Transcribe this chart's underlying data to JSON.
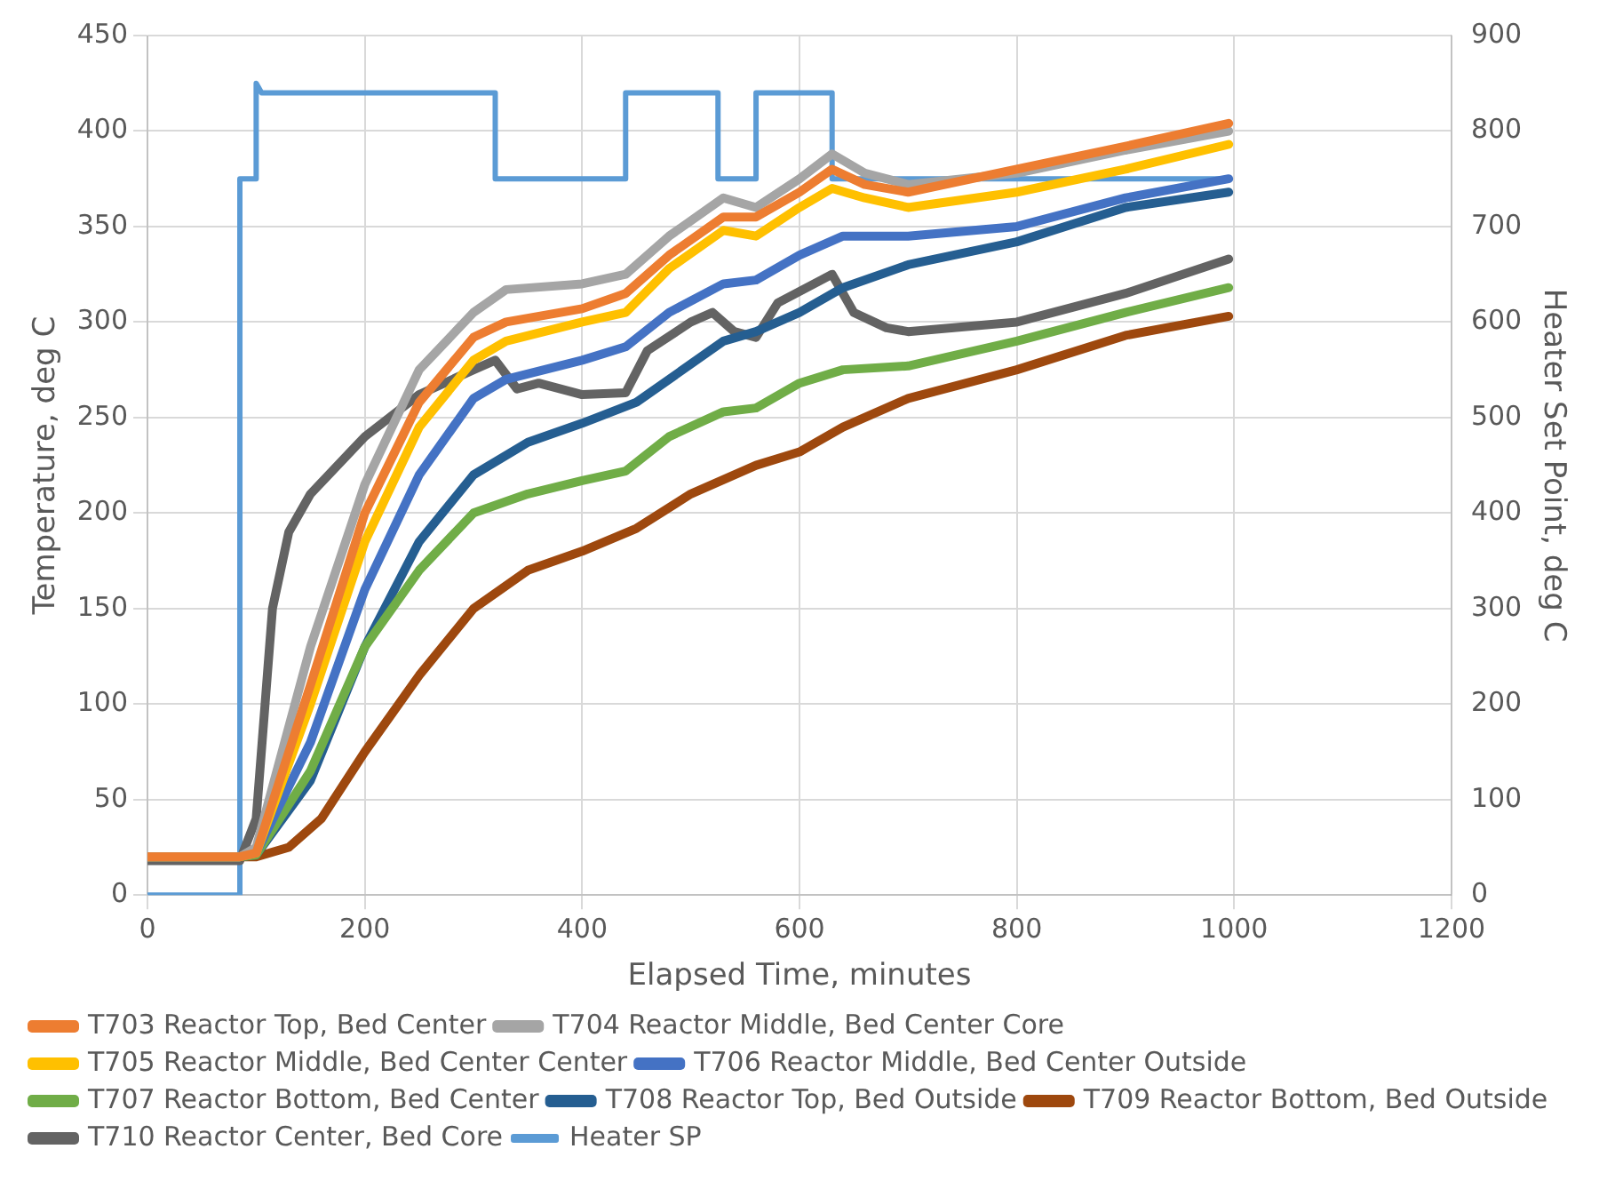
{
  "chart_data": {
    "type": "line",
    "xlabel": "Elapsed Time, minutes",
    "ylabel": "Temperature, deg C",
    "y2label": "Heater Set Point, deg C",
    "xlim": [
      0,
      1200
    ],
    "xticks": [
      0,
      200,
      400,
      600,
      800,
      1000,
      1200
    ],
    "ylim": [
      0,
      450
    ],
    "yticks": [
      0,
      50,
      100,
      150,
      200,
      250,
      300,
      350,
      400,
      450
    ],
    "y2lim": [
      0,
      900
    ],
    "y2ticks": [
      0,
      100,
      200,
      300,
      400,
      500,
      600,
      700,
      800,
      900
    ],
    "grid": true,
    "legend": "bottom",
    "line_style": "solid",
    "series": [
      {
        "name": "T703 Reactor Top, Bed Center",
        "color": "#ed7d31",
        "x": [
          0,
          85,
          100,
          150,
          200,
          250,
          300,
          330,
          400,
          440,
          480,
          530,
          560,
          600,
          630,
          660,
          700,
          800,
          900,
          995
        ],
        "values": [
          20,
          20,
          22,
          110,
          200,
          258,
          292,
          300,
          307,
          315,
          335,
          355,
          355,
          368,
          380,
          372,
          368,
          380,
          392,
          404
        ]
      },
      {
        "name": "T704 Reactor Middle, Bed Center Core",
        "color": "#a5a5a5",
        "x": [
          0,
          85,
          100,
          150,
          200,
          250,
          300,
          330,
          400,
          440,
          480,
          530,
          560,
          600,
          630,
          660,
          700,
          800,
          900,
          995
        ],
        "values": [
          20,
          20,
          25,
          130,
          215,
          275,
          305,
          317,
          320,
          325,
          345,
          365,
          360,
          375,
          388,
          378,
          372,
          378,
          390,
          400
        ]
      },
      {
        "name": "T705 Reactor Middle, Bed Center Center",
        "color": "#ffc000",
        "x": [
          0,
          85,
          100,
          150,
          200,
          250,
          300,
          330,
          400,
          440,
          480,
          530,
          560,
          600,
          630,
          660,
          700,
          800,
          900,
          995
        ],
        "values": [
          20,
          20,
          22,
          100,
          185,
          245,
          280,
          290,
          300,
          305,
          328,
          348,
          345,
          360,
          370,
          365,
          360,
          368,
          380,
          393
        ]
      },
      {
        "name": "T706 Reactor Middle, Bed Center Outside",
        "color": "#4472c4",
        "x": [
          0,
          85,
          100,
          150,
          200,
          250,
          300,
          330,
          400,
          440,
          480,
          530,
          560,
          600,
          640,
          700,
          800,
          900,
          995
        ],
        "values": [
          20,
          20,
          22,
          80,
          160,
          220,
          260,
          270,
          280,
          287,
          305,
          320,
          322,
          335,
          345,
          345,
          350,
          365,
          375
        ]
      },
      {
        "name": "T707 Reactor Bottom, Bed Center",
        "color": "#70ad47",
        "x": [
          0,
          85,
          100,
          150,
          200,
          250,
          300,
          350,
          400,
          440,
          480,
          530,
          560,
          600,
          640,
          700,
          800,
          900,
          995
        ],
        "values": [
          20,
          20,
          21,
          65,
          130,
          170,
          200,
          210,
          217,
          222,
          240,
          253,
          255,
          268,
          275,
          277,
          290,
          305,
          318
        ]
      },
      {
        "name": "T708 Reactor Top, Bed Outside",
        "color": "#255e91",
        "x": [
          0,
          85,
          100,
          150,
          200,
          250,
          300,
          350,
          400,
          450,
          500,
          530,
          560,
          600,
          640,
          700,
          800,
          900,
          995
        ],
        "values": [
          20,
          20,
          21,
          60,
          130,
          185,
          220,
          237,
          247,
          258,
          278,
          290,
          295,
          305,
          318,
          330,
          342,
          360,
          368
        ]
      },
      {
        "name": "T709 Reactor Bottom, Bed Outside",
        "color": "#9e480e",
        "x": [
          0,
          85,
          100,
          130,
          160,
          200,
          250,
          300,
          350,
          400,
          450,
          500,
          560,
          600,
          640,
          700,
          800,
          900,
          995
        ],
        "values": [
          20,
          20,
          20,
          25,
          40,
          75,
          115,
          150,
          170,
          180,
          192,
          210,
          225,
          232,
          245,
          260,
          275,
          293,
          303
        ]
      },
      {
        "name": "T710 Reactor Center, Bed Core",
        "color": "#636363",
        "x": [
          0,
          85,
          100,
          115,
          130,
          150,
          200,
          250,
          300,
          320,
          340,
          360,
          400,
          440,
          460,
          500,
          520,
          540,
          560,
          580,
          620,
          630,
          650,
          680,
          700,
          800,
          900,
          995
        ],
        "values": [
          18,
          18,
          40,
          150,
          190,
          210,
          240,
          262,
          275,
          280,
          265,
          268,
          262,
          263,
          285,
          300,
          305,
          295,
          292,
          310,
          322,
          325,
          305,
          297,
          295,
          300,
          315,
          333
        ]
      },
      {
        "name": "Heater SP",
        "color": "#5b9bd5",
        "axis": "y2",
        "x": [
          0,
          85,
          85,
          100,
          100,
          105,
          320,
          320,
          440,
          440,
          525,
          525,
          560,
          560,
          630,
          630,
          995
        ],
        "values": [
          0,
          0,
          750,
          750,
          850,
          840,
          840,
          750,
          750,
          840,
          840,
          750,
          750,
          840,
          840,
          750,
          750
        ]
      }
    ]
  }
}
